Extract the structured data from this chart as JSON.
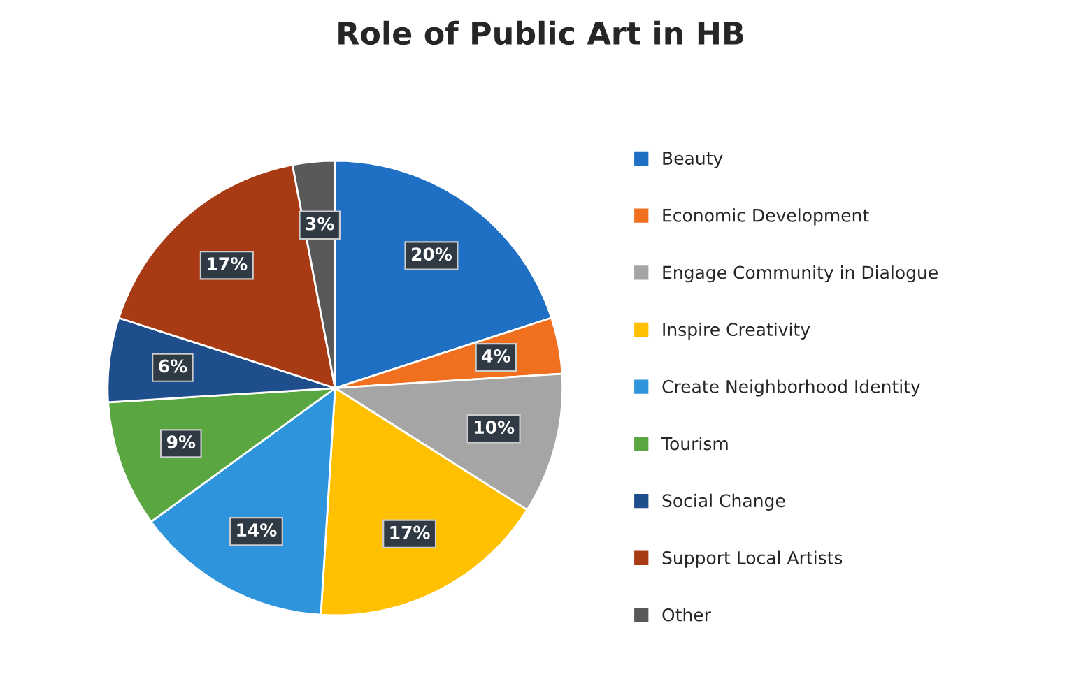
{
  "chart_data": {
    "type": "pie",
    "title": "Role of Public Art in HB",
    "categories": [
      "Beauty",
      "Economic Development",
      "Engage Community in Dialogue",
      "Inspire Creativity",
      "Create Neighborhood Identity",
      "Tourism",
      "Social Change",
      "Support Local Artists",
      "Other"
    ],
    "values": [
      20,
      4,
      10,
      17,
      14,
      9,
      6,
      17,
      3
    ],
    "value_labels": [
      "20%",
      "4%",
      "10%",
      "17%",
      "14%",
      "9%",
      "6%",
      "17%",
      "3%"
    ],
    "colors": [
      "#1f6fc5",
      "#f07020",
      "#a5a5a5",
      "#ffc000",
      "#2e95dd",
      "#5aa640",
      "#1f4e8c",
      "#a83a14",
      "#595959"
    ],
    "legend": "right"
  }
}
